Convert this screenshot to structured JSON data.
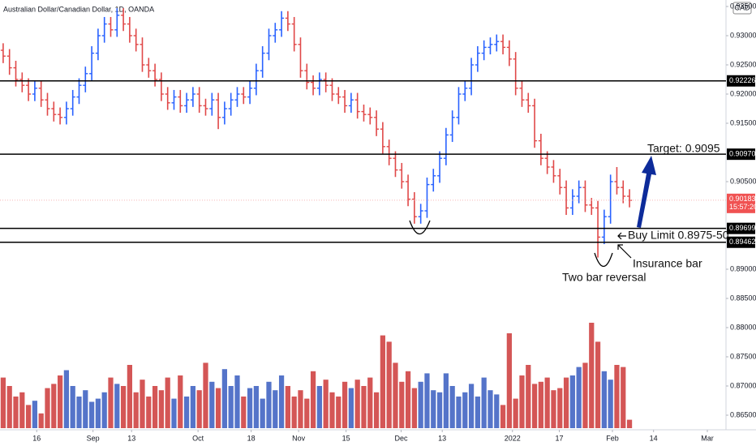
{
  "chart_data": {
    "type": "ohlc",
    "title": "Australian Dollar/Canadian Dollar, 1D, OANDA",
    "currency": "CAD",
    "up_color": "#2962ff",
    "down_color": "#e04848",
    "volume_up_color": "#5574c9",
    "volume_down_color": "#d45656",
    "open": [
      0.9275,
      0.9265,
      0.9245,
      0.9225,
      0.9215,
      0.92,
      0.921,
      0.919,
      0.9175,
      0.9165,
      0.916,
      0.9175,
      0.9195,
      0.9215,
      0.9235,
      0.927,
      0.93,
      0.932,
      0.931,
      0.9335,
      0.932,
      0.93,
      0.9285,
      0.925,
      0.924,
      0.9225,
      0.92,
      0.9185,
      0.9195,
      0.918,
      0.919,
      0.92,
      0.918,
      0.9175,
      0.919,
      0.916,
      0.9175,
      0.919,
      0.92,
      0.9195,
      0.921,
      0.924,
      0.927,
      0.93,
      0.931,
      0.933,
      0.932,
      0.9285,
      0.924,
      0.922,
      0.921,
      0.9225,
      0.9215,
      0.92,
      0.9195,
      0.918,
      0.919,
      0.917,
      0.9165,
      0.916,
      0.914,
      0.911,
      0.909,
      0.907,
      0.905,
      0.902,
      0.899,
      0.9,
      0.9045,
      0.906,
      0.909,
      0.913,
      0.916,
      0.92,
      0.921,
      0.925,
      0.927,
      0.928,
      0.9285,
      0.929,
      0.928,
      0.926,
      0.921,
      0.919,
      0.918,
      0.912,
      0.909,
      0.9075,
      0.906,
      0.904,
      0.9005,
      0.9025,
      0.904,
      0.901,
      0.9005,
      0.8955,
      0.899,
      0.905,
      0.904,
      0.9025
    ],
    "high": [
      0.9287,
      0.9277,
      0.9257,
      0.9237,
      0.9227,
      0.9222,
      0.9222,
      0.9202,
      0.9187,
      0.9177,
      0.9187,
      0.9207,
      0.9227,
      0.9247,
      0.9282,
      0.9312,
      0.9332,
      0.9332,
      0.9347,
      0.9347,
      0.9332,
      0.9312,
      0.9297,
      0.9262,
      0.9252,
      0.9237,
      0.9212,
      0.9207,
      0.9207,
      0.9202,
      0.9212,
      0.9212,
      0.9192,
      0.9202,
      0.9202,
      0.9187,
      0.9202,
      0.9212,
      0.9212,
      0.9222,
      0.9252,
      0.9282,
      0.9312,
      0.9322,
      0.9342,
      0.9342,
      0.9332,
      0.9297,
      0.9252,
      0.9232,
      0.9237,
      0.9237,
      0.9227,
      0.9212,
      0.9207,
      0.9202,
      0.9202,
      0.9182,
      0.9177,
      0.9172,
      0.9152,
      0.9122,
      0.9102,
      0.9082,
      0.9062,
      0.9032,
      0.9012,
      0.9057,
      0.9072,
      0.9102,
      0.9142,
      0.9172,
      0.9212,
      0.9222,
      0.9262,
      0.9282,
      0.9292,
      0.9297,
      0.9302,
      0.9302,
      0.9292,
      0.9272,
      0.9222,
      0.9202,
      0.9192,
      0.9132,
      0.9102,
      0.9087,
      0.9072,
      0.9052,
      0.9037,
      0.9052,
      0.9052,
      0.9022,
      0.9017,
      0.9002,
      0.9062,
      0.9075,
      0.9052,
      0.9037
    ],
    "low": [
      0.9253,
      0.9233,
      0.9213,
      0.9203,
      0.9188,
      0.9188,
      0.9178,
      0.9163,
      0.9153,
      0.9148,
      0.9148,
      0.9163,
      0.9183,
      0.9203,
      0.9223,
      0.9258,
      0.9288,
      0.9298,
      0.9298,
      0.9308,
      0.9288,
      0.9273,
      0.9238,
      0.9228,
      0.9213,
      0.9188,
      0.9173,
      0.9173,
      0.9168,
      0.9168,
      0.9178,
      0.9168,
      0.9163,
      0.9163,
      0.914,
      0.9148,
      0.9163,
      0.9178,
      0.9183,
      0.9183,
      0.9198,
      0.9228,
      0.9258,
      0.9288,
      0.9298,
      0.9308,
      0.9273,
      0.9228,
      0.9208,
      0.9198,
      0.9198,
      0.9203,
      0.9188,
      0.9183,
      0.9168,
      0.9168,
      0.9158,
      0.9153,
      0.9148,
      0.9128,
      0.9098,
      0.9078,
      0.9058,
      0.9038,
      0.9008,
      0.8978,
      0.8978,
      0.8988,
      0.9033,
      0.9048,
      0.9078,
      0.9118,
      0.9148,
      0.9188,
      0.9198,
      0.9238,
      0.9258,
      0.9268,
      0.9273,
      0.9268,
      0.9248,
      0.9198,
      0.9178,
      0.9168,
      0.9108,
      0.9078,
      0.9063,
      0.9048,
      0.9028,
      0.8993,
      0.8993,
      0.9013,
      0.8998,
      0.8993,
      0.892,
      0.8943,
      0.8978,
      0.9028,
      0.9013,
      0.9006
    ],
    "close": [
      0.9265,
      0.9245,
      0.9225,
      0.9215,
      0.92,
      0.921,
      0.919,
      0.9175,
      0.9165,
      0.916,
      0.9175,
      0.9195,
      0.9215,
      0.9235,
      0.927,
      0.93,
      0.932,
      0.931,
      0.9335,
      0.932,
      0.93,
      0.9285,
      0.925,
      0.924,
      0.9225,
      0.92,
      0.9185,
      0.9195,
      0.918,
      0.919,
      0.92,
      0.918,
      0.9175,
      0.919,
      0.916,
      0.9175,
      0.919,
      0.92,
      0.9195,
      0.921,
      0.924,
      0.927,
      0.93,
      0.931,
      0.933,
      0.932,
      0.9285,
      0.924,
      0.922,
      0.921,
      0.9225,
      0.9215,
      0.92,
      0.9195,
      0.918,
      0.919,
      0.917,
      0.9165,
      0.916,
      0.914,
      0.911,
      0.909,
      0.907,
      0.905,
      0.902,
      0.899,
      0.9,
      0.9045,
      0.906,
      0.909,
      0.913,
      0.916,
      0.92,
      0.921,
      0.925,
      0.927,
      0.928,
      0.9285,
      0.929,
      0.928,
      0.926,
      0.921,
      0.919,
      0.918,
      0.912,
      0.909,
      0.9075,
      0.906,
      0.904,
      0.9005,
      0.9025,
      0.904,
      0.901,
      0.9005,
      0.8955,
      0.899,
      0.905,
      0.904,
      0.9025,
      0.9018
    ],
    "volume": [
      48,
      40,
      30,
      34,
      22,
      26,
      14,
      38,
      42,
      50,
      55,
      40,
      30,
      36,
      25,
      28,
      34,
      48,
      42,
      40,
      60,
      34,
      46,
      30,
      40,
      36,
      48,
      28,
      50,
      30,
      40,
      36,
      62,
      44,
      38,
      56,
      40,
      50,
      30,
      38,
      40,
      28,
      44,
      36,
      50,
      40,
      30,
      36,
      28,
      54,
      40,
      46,
      34,
      30,
      44,
      38,
      46,
      40,
      48,
      34,
      88,
      82,
      62,
      44,
      54,
      38,
      44,
      52,
      36,
      34,
      52,
      40,
      30,
      34,
      42,
      30,
      48,
      36,
      32,
      22,
      90,
      28,
      50,
      60,
      42,
      44,
      48,
      36,
      38,
      48,
      50,
      58,
      62,
      100,
      82,
      54,
      46,
      60,
      58,
      8
    ],
    "xlim": [
      -0.5,
      114.25
    ],
    "ylim": [
      0.865,
      0.935
    ],
    "xticks": [
      {
        "value": 5.3,
        "label": "16"
      },
      {
        "value": 14.2,
        "label": "Sep"
      },
      {
        "value": 20.3,
        "label": "13"
      },
      {
        "value": 30.8,
        "label": "Oct"
      },
      {
        "value": 39.2,
        "label": "18"
      },
      {
        "value": 46.7,
        "label": "Nov"
      },
      {
        "value": 54.2,
        "label": "15"
      },
      {
        "value": 62.9,
        "label": "Dec"
      },
      {
        "value": 69.4,
        "label": "13"
      },
      {
        "value": 80.5,
        "label": "2022"
      },
      {
        "value": 87.9,
        "label": "17"
      },
      {
        "value": 96.3,
        "label": "Feb"
      },
      {
        "value": 102.8,
        "label": "14"
      },
      {
        "value": 111.3,
        "label": "Mar"
      }
    ],
    "yticks": [
      {
        "value": 0.935,
        "label": "0.93500"
      },
      {
        "value": 0.93,
        "label": "0.93000"
      },
      {
        "value": 0.925,
        "label": "0.92500"
      },
      {
        "value": 0.92,
        "label": "0.92000"
      },
      {
        "value": 0.915,
        "label": "0.91500"
      },
      {
        "value": 0.905,
        "label": "0.90500"
      },
      {
        "value": 0.89,
        "label": "0.89000"
      },
      {
        "value": 0.885,
        "label": "0.88500"
      },
      {
        "value": 0.88,
        "label": "0.88000"
      },
      {
        "value": 0.875,
        "label": "0.87500"
      },
      {
        "value": 0.87,
        "label": "0.87000"
      },
      {
        "value": 0.865,
        "label": "0.86500"
      }
    ],
    "levels": [
      {
        "value": 0.92226,
        "label": "0.92226"
      },
      {
        "value": 0.9097,
        "label": "0.90970"
      },
      {
        "value": 0.89699,
        "label": "0.89699"
      },
      {
        "value": 0.89462,
        "label": "0.89462"
      }
    ],
    "last_price": {
      "value": 0.90183,
      "label": "0.90183",
      "countdown": "15:57:20"
    },
    "annotations": {
      "target": "Target: 0.9095",
      "buy_limit": "Buy Limit 0.8975-50",
      "insurance": "Insurance bar",
      "reversal": "Two bar reversal"
    }
  }
}
